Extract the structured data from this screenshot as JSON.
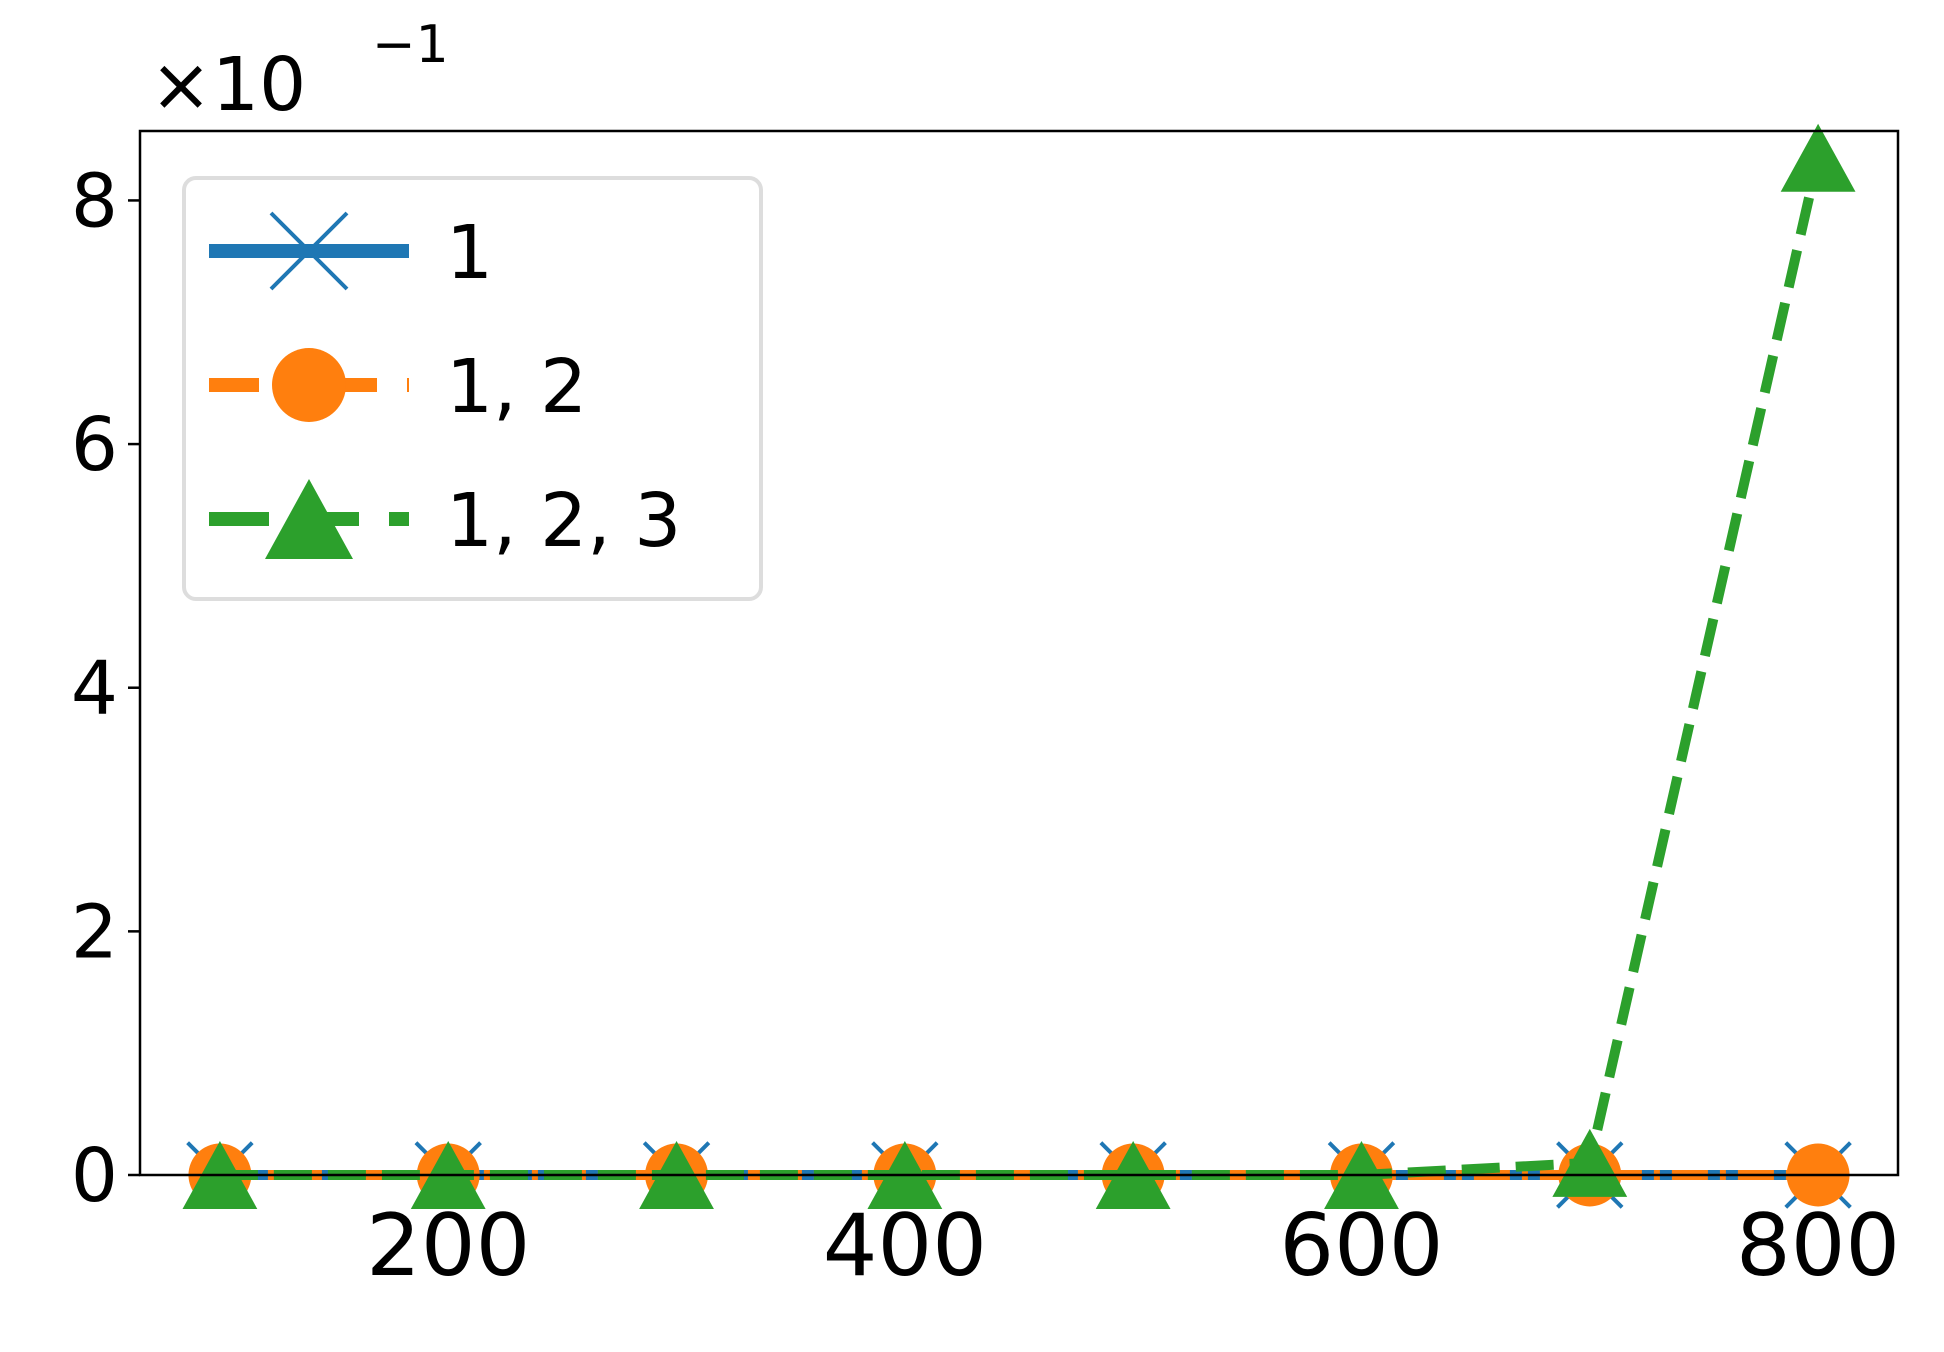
{
  "chart_data": {
    "type": "line",
    "y_offset_base": "×10",
    "y_offset_exponent": "−1",
    "x": [
      100,
      200,
      300,
      400,
      500,
      600,
      700,
      800
    ],
    "series": [
      {
        "name": "1",
        "color": "#1f77b4",
        "marker": "x",
        "dash": "solid",
        "values": [
          0,
          0,
          0,
          0,
          0,
          0,
          0,
          0
        ]
      },
      {
        "name": "1, 2",
        "color": "#ff7f0e",
        "marker": "circle",
        "dash": "dashdot",
        "values": [
          0,
          0,
          0,
          0,
          0,
          0,
          0,
          0
        ]
      },
      {
        "name": "1, 2, 3",
        "color": "#2ca02c",
        "marker": "triangle",
        "dash": "dashed",
        "values": [
          0,
          0,
          0,
          0,
          0,
          0,
          0.1,
          8.35
        ]
      }
    ],
    "xlim": [
      65,
      835
    ],
    "ylim": [
      0,
      8.57
    ],
    "xticks": [
      200,
      400,
      600,
      800
    ],
    "yticks": [
      0,
      2,
      4,
      6,
      8
    ],
    "legend": "upper left",
    "grid": false
  }
}
